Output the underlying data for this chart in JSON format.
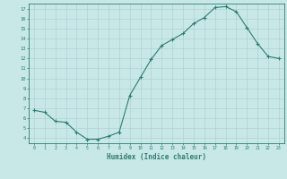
{
  "x": [
    0,
    1,
    2,
    3,
    4,
    5,
    6,
    7,
    8,
    9,
    10,
    11,
    12,
    13,
    14,
    15,
    16,
    17,
    18,
    19,
    20,
    21,
    22,
    23
  ],
  "y": [
    6.8,
    6.6,
    5.7,
    5.6,
    4.6,
    3.9,
    3.9,
    4.2,
    4.6,
    8.3,
    10.1,
    11.9,
    13.3,
    13.9,
    14.5,
    15.5,
    16.1,
    17.1,
    17.2,
    16.7,
    15.1,
    13.5,
    12.2,
    12.0
  ],
  "xlabel": "Humidex (Indice chaleur)",
  "ylim": [
    3.5,
    17.5
  ],
  "xlim": [
    -0.5,
    23.5
  ],
  "yticks": [
    4,
    5,
    6,
    7,
    8,
    9,
    10,
    11,
    12,
    13,
    14,
    15,
    16,
    17
  ],
  "xticks": [
    0,
    1,
    2,
    3,
    4,
    5,
    6,
    7,
    8,
    9,
    10,
    11,
    12,
    13,
    14,
    15,
    16,
    17,
    18,
    19,
    20,
    21,
    22,
    23
  ],
  "line_color": "#2d7d6e",
  "bg_color": "#c8e8e8",
  "grid_color": "#aacccc",
  "tick_color": "#2d7d6e",
  "label_color": "#2d7d6e"
}
